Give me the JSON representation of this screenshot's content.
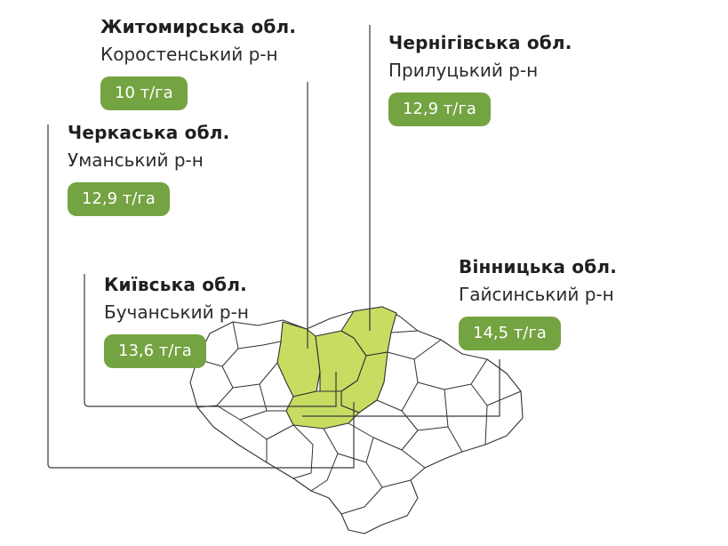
{
  "colors": {
    "badge": "#74a341",
    "highlight": "#c6dd62",
    "outline": "#303030",
    "leader_line": "#3a3a3a",
    "map_fill": "#ffffff"
  },
  "regions": [
    {
      "id": "zhytomyr",
      "region": "Житомирська обл.",
      "district": "Коростенський р-н",
      "yield": "10 т/га",
      "highlighted": true
    },
    {
      "id": "cherkasy",
      "region": "Черкаська обл.",
      "district": "Уманський р-н",
      "yield": "12,9 т/га",
      "highlighted": true
    },
    {
      "id": "kyiv",
      "region": "Київська обл.",
      "district": "Бучанський р-н",
      "yield": "13,6 т/га",
      "highlighted": true
    },
    {
      "id": "chernihiv",
      "region": "Чернігівська обл.",
      "district": "Прилуцький р-н",
      "yield": "12,9 т/га",
      "highlighted": true
    },
    {
      "id": "vinnytsia",
      "region": "Вінницька обл.",
      "district": "Гайсинський р-н",
      "yield": "14,5 т/га",
      "highlighted": true
    }
  ]
}
